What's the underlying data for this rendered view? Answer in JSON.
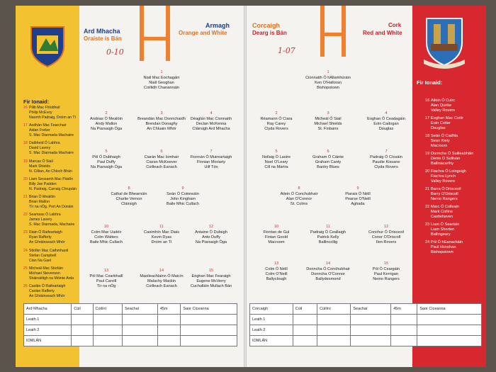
{
  "left_page": {
    "header": {
      "team_irish": "Ard Mhacha",
      "colours_irish": "Oraiste is Bán",
      "team_english": "Armagh",
      "colours_english": "Orange and White"
    },
    "subs_title": "Fir Ionaid:",
    "players": [
      {
        "number": 1,
        "name_irish": "Niall Mac Eochagáin",
        "name_english": "Niall Geoghan",
        "club": "Coillidh Chanannáin"
      },
      {
        "number": 2,
        "name_irish": "Andrias Ó Mealóin",
        "name_english": "Andy Mallon",
        "club": "Na Piarsaigh Óga"
      },
      {
        "number": 3,
        "name_irish": "Breandán Mac Donnchaidh",
        "name_english": "Brendan Donaghy",
        "club": "An Chluain Mhór"
      },
      {
        "number": 4,
        "name_irish": "Déaglán Mac Cionnaith",
        "name_english": "Declan McKenna",
        "club": "Cláirsigh Ard Mhacha"
      },
      {
        "number": 5,
        "name_irish": "Pól Ó Dubhaigh",
        "name_english": "Paul Duffy",
        "club": "Na Piarsaigh Óga"
      },
      {
        "number": 6,
        "name_irish": "Ciarán Mac Iomhair",
        "name_english": "Ciaran McKeever",
        "club": "Coilleach Eanach"
      },
      {
        "number": 7,
        "name_irish": "Fionnán Ó Muireartaigh",
        "name_english": "Finnian Moriarty",
        "club": "Uilf Tón"
      },
      {
        "number": 8,
        "name_irish": "Cathal de Bhearnúin",
        "name_english": "Charlie Vernon",
        "club": "Cláirsigh"
      },
      {
        "number": 9,
        "name_irish": "Seán Ó Coinneáin",
        "name_english": "John Kingham",
        "club": "Baile Mhic Cullach"
      },
      {
        "number": 10,
        "name_irish": "Colm Mac Uaitéir",
        "name_english": "Colm Watters",
        "club": "Baile Mhic Cullach"
      },
      {
        "number": 11,
        "name_irish": "Caoimhín Mac Diais",
        "name_english": "Kevin Dyas",
        "club": "Droim an Tí"
      },
      {
        "number": 12,
        "name_irish": "Antaine Ó Dufaigh",
        "name_english": "Anto Duffy",
        "club": "Na Piarsaigh Óga"
      },
      {
        "number": 13,
        "name_irish": "Pól Mac Cearbhaill",
        "name_english": "Paul Carvill",
        "club": "Tír na nÓg"
      },
      {
        "number": 14,
        "name_irish": "Maoileachlainn Ó Maicín",
        "name_english": "Malachy Mackin",
        "club": "Coilleach Eanach"
      },
      {
        "number": 15,
        "name_irish": "Eoghan Mac Fearaigh",
        "name_english": "Eugene McVerry",
        "club": "Cuchulláin Mullach Bán"
      }
    ],
    "subs": [
      {
        "number": 16,
        "name_irish": "Pilib Mac Fhlobhuil",
        "name_english": "Philip McEvoy",
        "club": "Naomh Padraig, Droim an Tí"
      },
      {
        "number": 17,
        "name_irish": "Aodhán Mac Fearchair",
        "name_english": "Aidan Forker",
        "club": "S. Mac Diarmada Machaire"
      },
      {
        "number": 18,
        "name_irish": "Daibheid Ó Labhra",
        "name_english": "David Lavery",
        "club": "S. Mac Diarmada Machaire"
      },
      {
        "number": 19,
        "name_irish": "Marcas Ó Siail",
        "name_english": "Mark Shields",
        "club": "N. Cillian, An Chloch Bhán"
      },
      {
        "number": 20,
        "name_irish": "Liam Seosamh Mac Pàidín",
        "name_english": "Billy Joe Padden",
        "club": "N. Padraig, Carraig Chrupáin"
      },
      {
        "number": 21,
        "name_irish": "Brian Ó Mealóin",
        "name_english": "Brian Mallon",
        "club": "Tír na nÓg, Port An Dúnáin"
      },
      {
        "number": 22,
        "name_irish": "Seamsas Ó Labhra",
        "name_english": "James Lavery",
        "club": "S. Mac Diarmada, Machaire"
      },
      {
        "number": 23,
        "name_irish": "Riain Ó Raifeartaigh",
        "name_english": "Ryan Rafferty",
        "club": "An Ghráinseach Mhór"
      },
      {
        "number": 24,
        "name_irish": "Stiofán Mac Cathmhaoil",
        "name_english": "Stefan Campbell",
        "club": "Clan Na Gael"
      },
      {
        "number": 25,
        "name_irish": "Micheál Mac Stiofáin",
        "name_english": "Michael Stevenson",
        "club": "Sháirsiéligh na Móinte Arda"
      },
      {
        "number": 26,
        "name_irish": "Caolán Ó Raifeartaigh",
        "name_english": "Caolan Rafferty",
        "club": "An Ghráinseach Mhór"
      }
    ],
    "score_table": {
      "columns": [
        "Ard Mhacha",
        "Cúil",
        "Cúilíní",
        "Seachaí",
        "45m",
        "Saor Ciceanna"
      ],
      "rows": [
        "Leath 1",
        "Leath 2",
        "IOMLÁN"
      ]
    }
  },
  "right_page": {
    "header": {
      "team_irish": "Corcaigh",
      "colours_irish": "Dearg is Bán",
      "team_english": "Cork",
      "colours_english": "Red and White"
    },
    "subs_title": "Fir Ionaid:",
    "players": [
      {
        "number": 1,
        "name_irish": "Cionnaith Ó hAllamhúráin",
        "name_english": "Ken O'Halloran",
        "club": "Bishopstown"
      },
      {
        "number": 2,
        "name_irish": "Réamann Ó Ciara",
        "name_english": "Ray Carey",
        "club": "Clyda Rovers"
      },
      {
        "number": 3,
        "name_irish": "Micheál Ó Siail",
        "name_english": "Michael Shields",
        "club": "St. Finbarrs"
      },
      {
        "number": 4,
        "name_irish": "Eoghan Ó Ceadagáin",
        "name_english": "Eoin Cadogan",
        "club": "Douglas"
      },
      {
        "number": 5,
        "name_irish": "Nollaig Ó Laoire",
        "name_english": "Noel O'Leary",
        "club": "Cill na Martra"
      },
      {
        "number": 6,
        "name_irish": "Graham Ó Cáinte",
        "name_english": "Graham Canty",
        "club": "Bantry Blues"
      },
      {
        "number": 7,
        "name_irish": "Padraig Ó Cíosáin",
        "name_english": "Paudie Kissane",
        "club": "Clyda Rovers"
      },
      {
        "number": 8,
        "name_irish": "Ailein Ó Conchubhair",
        "name_english": "Alan O'Connor",
        "club": "St. Colms"
      },
      {
        "number": 9,
        "name_irish": "Piarais Ó Néill",
        "name_english": "Pearse O'Neill",
        "club": "Aghada"
      },
      {
        "number": 10,
        "name_irish": "Fiontan de Gul",
        "name_english": "Fintan Goold",
        "club": "Macroom"
      },
      {
        "number": 11,
        "name_irish": "Padraig Ó Ceallaigh",
        "name_english": "Patrick Kelly",
        "club": "Ballincollig"
      },
      {
        "number": 12,
        "name_irish": "Conchur Ó Drisceoil",
        "name_english": "Conor O'Driscoll",
        "club": "Ilen Rovers"
      },
      {
        "number": 13,
        "name_irish": "Colm Ó Néill",
        "name_english": "Colm O'Neill",
        "club": "Ballyclough"
      },
      {
        "number": 14,
        "name_irish": "Donncha Ó Conchubhair",
        "name_english": "Donncha O'Connor",
        "club": "Ballydesmond"
      },
      {
        "number": 15,
        "name_irish": "Pól Ó Ceargáin",
        "name_english": "Paul Kerrigan",
        "club": "Nemo Rangers"
      }
    ],
    "subs": [
      {
        "number": 16,
        "name_irish": "Ailein Ó Cuirc",
        "name_english": "Alan Quirke",
        "club": "Valley Rovers"
      },
      {
        "number": 17,
        "name_irish": "Eoghan Mac Coitir",
        "name_english": "Eoin Cotter",
        "club": "Douglas"
      },
      {
        "number": 18,
        "name_irish": "Seán Ó Cadhla",
        "name_english": "Sean Kiely",
        "club": "Macroom"
      },
      {
        "number": 19,
        "name_irish": "Donncha Ó Suilleabháin",
        "name_english": "Denis O Sullivan",
        "club": "Ballinacarthy"
      },
      {
        "number": 20,
        "name_irish": "Fiachra Ó Loingsigh",
        "name_english": "Fiachra Lynch",
        "club": "Valley Rovers"
      },
      {
        "number": 21,
        "name_irish": "Barra Ó Drisceoil",
        "name_english": "Barry O'Driscoll",
        "club": "Nemo Rangers"
      },
      {
        "number": 22,
        "name_irish": "Marc Ó Colleain",
        "name_english": "Mark Collins",
        "club": "Castlehaven"
      },
      {
        "number": 23,
        "name_irish": "Liam Ó Seartain",
        "name_english": "Liam Shorten",
        "club": "Ballingeary"
      },
      {
        "number": 24,
        "name_irish": "Pól Ó hEanacháin",
        "name_english": "Paul Honohan",
        "club": "Bishopstown"
      }
    ],
    "score_table": {
      "columns": [
        "Corcaigh",
        "Cúil",
        "Cúilíní",
        "Seachaí",
        "45m",
        "Saor Ciceanna"
      ],
      "rows": [
        "Leath 1",
        "Leath 2",
        "IOMLÁN"
      ]
    }
  },
  "annotations": [
    "0-10",
    "1-07"
  ]
}
